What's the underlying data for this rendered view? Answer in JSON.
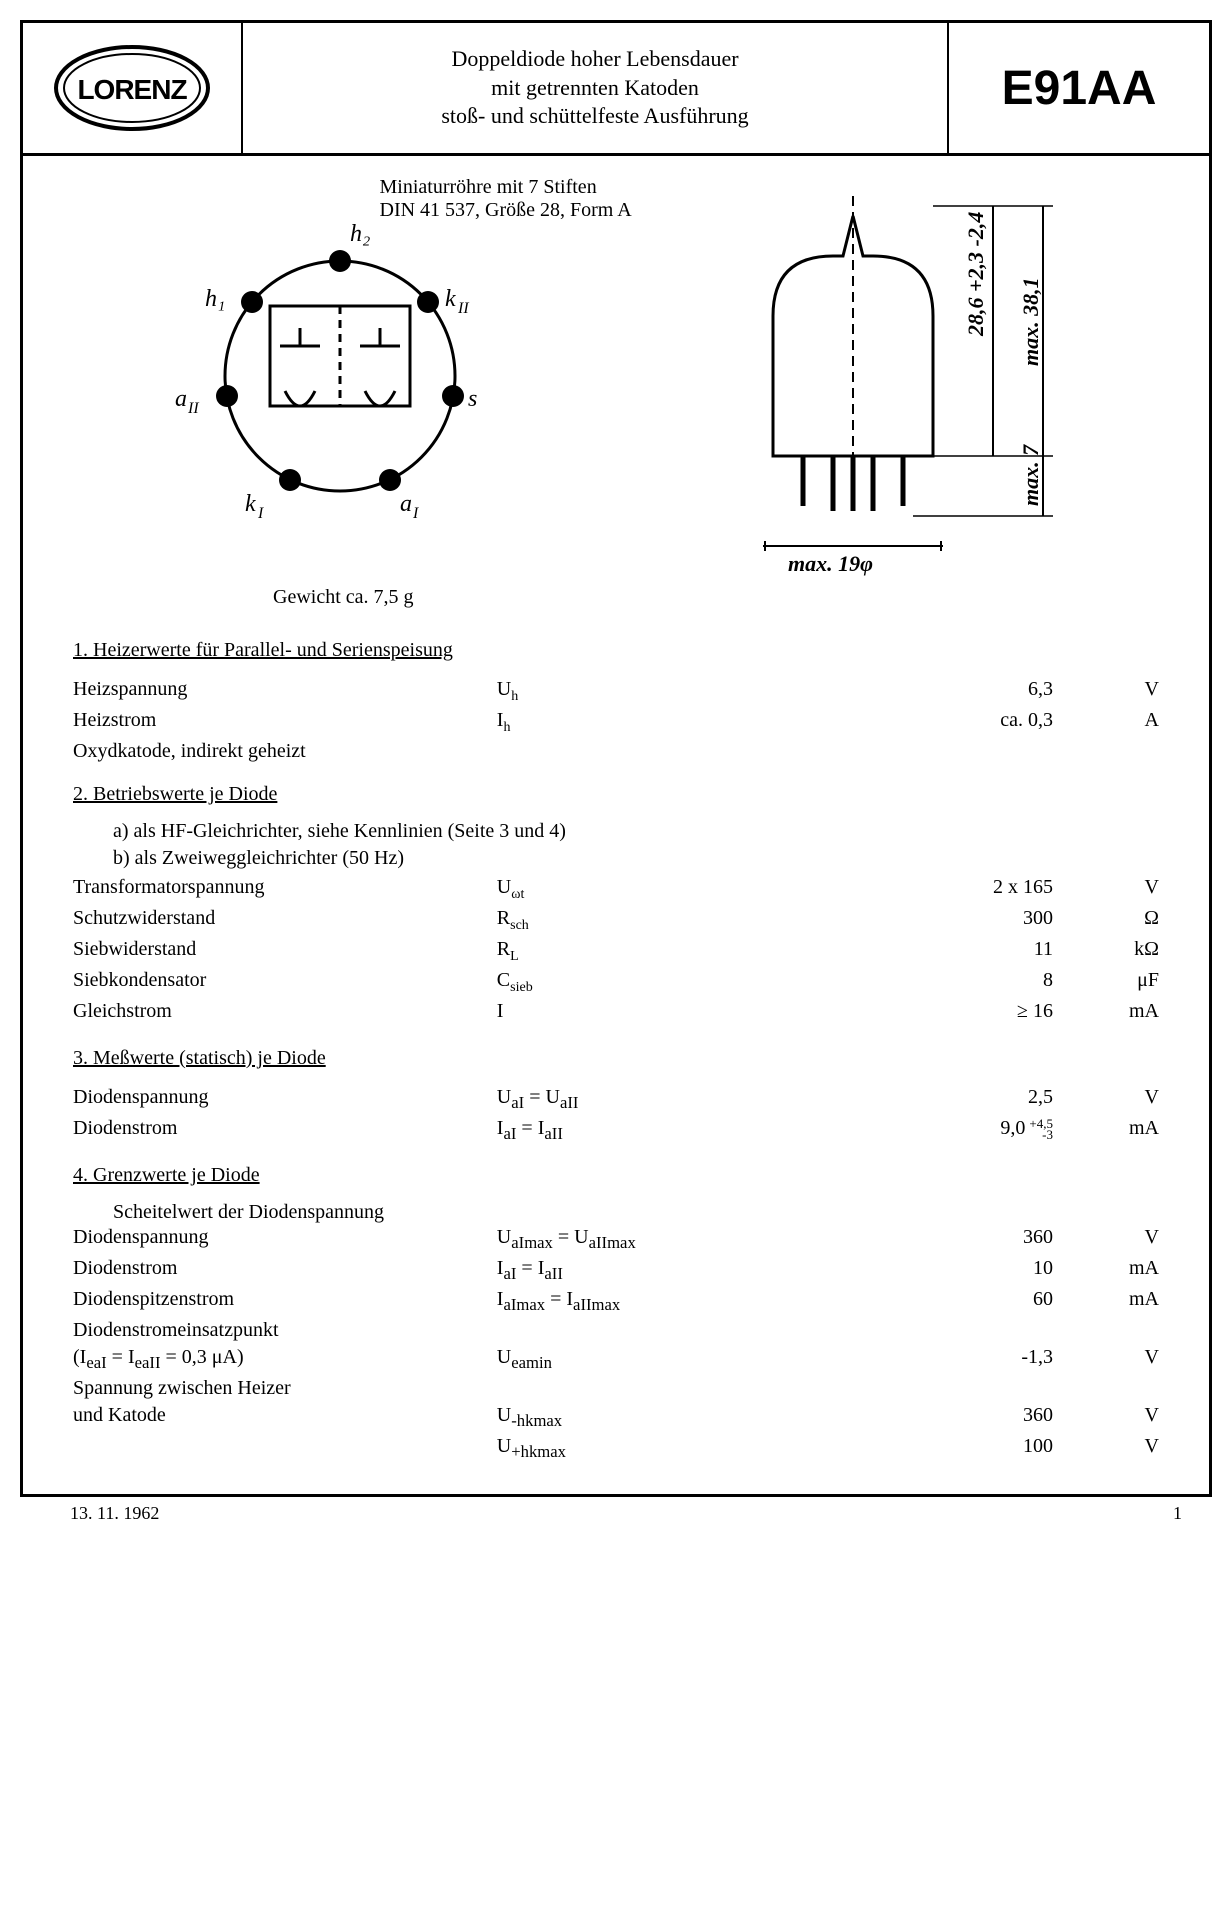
{
  "header": {
    "logo_text": "LORENZ",
    "description_l1": "Doppeldiode hoher Lebensdauer",
    "description_l2": "mit getrennten Katoden",
    "description_l3": "stoß- und schüttelfeste Ausführung",
    "part_number": "E91AA"
  },
  "diagram": {
    "caption_l1": "Miniaturröhre mit 7 Stiften",
    "caption_l2": "DIN 41 537, Größe 28, Form A",
    "pins": [
      "h₁",
      "h₂",
      "k_II",
      "s",
      "a_I",
      "k_I",
      "a_II"
    ],
    "dims": {
      "width": "max. 19φ",
      "body": "28,6 +2,3 -2,4",
      "total": "max. 38,1",
      "pins_h": "max. 7"
    }
  },
  "weight": "Gewicht ca. 7,5 g",
  "sections": {
    "s1": {
      "title": "Heizerwerte für Parallel- und Serienspeisung",
      "rows": [
        {
          "label": "Heizspannung",
          "sym": "U",
          "sub": "h",
          "val": "6,3",
          "unit": "V"
        },
        {
          "label": "Heizstrom",
          "sym": "I",
          "sub": "h",
          "val": "ca. 0,3",
          "unit": "A"
        }
      ],
      "note": "Oxydkatode, indirekt geheizt"
    },
    "s2": {
      "title": "Betriebswerte je Diode",
      "line_a": "a) als HF-Gleichrichter, siehe Kennlinien (Seite 3 und 4)",
      "line_b": "b) als Zweiweggleichrichter (50 Hz)",
      "rows": [
        {
          "label": "Transformatorspannung",
          "sym": "U",
          "sub": "ωt",
          "val": "2 x 165",
          "unit": "V"
        },
        {
          "label": "Schutzwiderstand",
          "sym": "R",
          "sub": "sch",
          "val": "300",
          "unit": "Ω"
        },
        {
          "label": "Siebwiderstand",
          "sym": "R",
          "sub": "L",
          "val": "11",
          "unit": "kΩ"
        },
        {
          "label": "Siebkondensator",
          "sym": "C",
          "sub": "sieb",
          "val": "8",
          "unit": "μF"
        },
        {
          "label": "Gleichstrom",
          "sym": "I",
          "sub": "",
          "val": "≥ 16",
          "unit": "mA"
        }
      ]
    },
    "s3": {
      "title": "Meßwerte (statisch) je Diode",
      "rows": [
        {
          "label": "Diodenspannung",
          "symhtml": "U<sub>aI</sub> = U<sub>aII</sub>",
          "val": "2,5",
          "unit": "V"
        },
        {
          "label": "Diodenstrom",
          "symhtml": "I<sub>aI</sub> = I<sub>aII</sub>",
          "val": "9,0",
          "tol_up": "+4,5",
          "tol_dn": "-3",
          "unit": "mA"
        }
      ]
    },
    "s4": {
      "title": "Grenzwerte je Diode",
      "pre": "Scheitelwert der Diodenspannung",
      "rows": [
        {
          "label": "Diodenspannung",
          "symhtml": "U<sub>aImax</sub> = U<sub>aIImax</sub>",
          "val": "360",
          "unit": "V"
        },
        {
          "label": "Diodenstrom",
          "symhtml": "I<sub>aI</sub> = I<sub>aII</sub>",
          "val": "10",
          "unit": "mA"
        },
        {
          "label": "Diodenspitzenstrom",
          "symhtml": "I<sub>aImax</sub> = I<sub>aIImax</sub>",
          "val": "60",
          "unit": "mA"
        },
        {
          "label": "Diodenstromeinsatzpunkt",
          "symhtml": "",
          "val": "",
          "unit": ""
        },
        {
          "label": "(I<sub>eaI</sub> = I<sub>eaII</sub> = 0,3 μA)",
          "symhtml": "U<sub>eamin</sub>",
          "val": "-1,3",
          "unit": "V"
        },
        {
          "label": "Spannung zwischen Heizer",
          "symhtml": "",
          "val": "",
          "unit": ""
        },
        {
          "label": "und Katode",
          "symhtml": "U<sub>-hkmax</sub>",
          "val": "360",
          "unit": "V"
        },
        {
          "label": "",
          "symhtml": "U<sub>+hkmax</sub>",
          "val": "100",
          "unit": "V"
        }
      ]
    }
  },
  "footer": {
    "date": "13. 11. 1962",
    "page": "1"
  }
}
